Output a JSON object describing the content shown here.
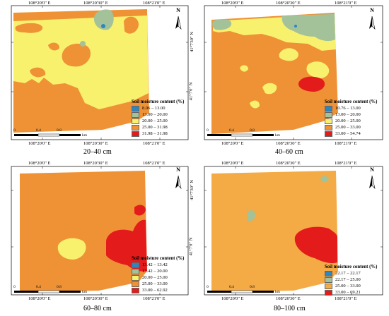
{
  "colors": {
    "c1": "#2e86c1",
    "c2": "#a3c29a",
    "c3": "#f7f16e",
    "c4": "#ee9235",
    "c4b": "#f4aa45",
    "c5": "#e41b1b"
  },
  "north_label": "N",
  "coords": {
    "x1": "108°20'0\" E",
    "x2": "108°20'30\" E",
    "x3": "108°21'0\" E",
    "y1": "41°7'30\" N",
    "y2": "41°7'0\" N"
  },
  "scale": {
    "zero": "0",
    "mid": "0.4",
    "end": "0.8",
    "unit": "km"
  },
  "panels": [
    {
      "caption": "20–40 cm",
      "legend_title": "Soil moisture content (%)",
      "legend": [
        {
          "label": "8.06 – 13.00",
          "color": "#2e86c1"
        },
        {
          "label": "13.00 – 20.00",
          "color": "#a3c29a"
        },
        {
          "label": "20.00 – 25.00",
          "color": "#f7f16e"
        },
        {
          "label": "25.00 – 31.98",
          "color": "#ee9235"
        },
        {
          "label": "31.98 – 31.98",
          "color": "#e41b1b"
        }
      ]
    },
    {
      "caption": "40–60 cm",
      "legend_title": "Soil moisture content (%)",
      "legend": [
        {
          "label": "10.76 – 13.00",
          "color": "#2e86c1"
        },
        {
          "label": "13.00 – 20.00",
          "color": "#a3c29a"
        },
        {
          "label": "20.00 – 25.00",
          "color": "#f7f16e"
        },
        {
          "label": "25.00 – 33.00",
          "color": "#ee9235"
        },
        {
          "label": "33.00 – 54.74",
          "color": "#e41b1b"
        }
      ]
    },
    {
      "caption": "60–80 cm",
      "legend_title": "Soil moisture content (%)",
      "legend": [
        {
          "label": "13.42 – 13.42",
          "color": "#2e86c1"
        },
        {
          "label": "13.42 – 20.00",
          "color": "#a3c29a"
        },
        {
          "label": "20.00 – 25.00",
          "color": "#f7f16e"
        },
        {
          "label": "25.00 – 33.00",
          "color": "#ee9235"
        },
        {
          "label": "33.00 – 62.92",
          "color": "#e41b1b"
        }
      ]
    },
    {
      "caption": "80–100 cm",
      "legend_title": "Soil moisture content (%)",
      "legend": [
        {
          "label": "22.17 – 22.17",
          "color": "#2e86c1"
        },
        {
          "label": "22.17 – 25.00",
          "color": "#a3c29a"
        },
        {
          "label": "25.00 – 33.00",
          "color": "#f4aa45"
        },
        {
          "label": "33.00 – 69.21",
          "color": "#e41b1b"
        }
      ]
    }
  ]
}
